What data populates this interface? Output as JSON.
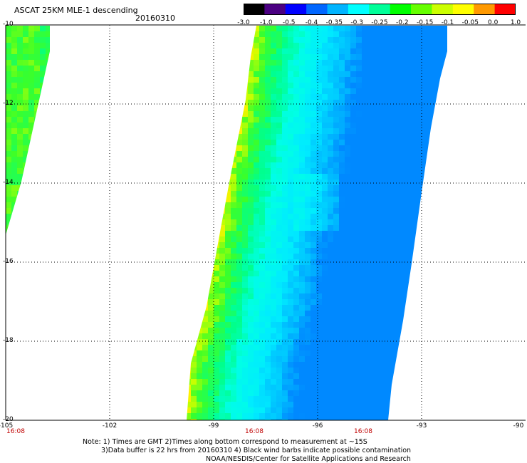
{
  "header": {
    "title": "ASCAT 25KM MLE-1 descending",
    "date": "20160310"
  },
  "colorbar": {
    "labels": [
      "-3.0",
      "-1.0",
      "-0.5",
      "-0.4",
      "-0.35",
      "-0.3",
      "-0.25",
      "-0.2",
      "-0.15",
      "-0.1",
      "-0.05",
      "0.0",
      "1.0"
    ],
    "colors": [
      "#000000",
      "#4b0082",
      "#0000ff",
      "#0066ff",
      "#00b4ff",
      "#00ffff",
      "#00ff99",
      "#00ff00",
      "#66ff00",
      "#ccff00",
      "#ffff00",
      "#ff9900",
      "#ff0000"
    ]
  },
  "map": {
    "lat_labels": [
      "-10",
      "-12",
      "-14",
      "-16",
      "-18",
      "-20"
    ],
    "lon_labels": [
      "-105",
      "-102",
      "-99",
      "-96",
      "-93",
      "-90"
    ],
    "time_labels": [
      "16:08",
      "16:08",
      "16:08"
    ],
    "lat_range": [
      -20,
      -10
    ],
    "lon_range": [
      -105,
      -90
    ]
  },
  "footer": {
    "line1": "Note: 1) Times are GMT 2)Times along bottom correspond to measurement at ~15S",
    "line2": "3)Data buffer is 22 hrs from 20160310 4) Black wind barbs indicate possible contamination",
    "line3": "NOAA/NESDIS/Center for Satellite Applications and Research"
  }
}
